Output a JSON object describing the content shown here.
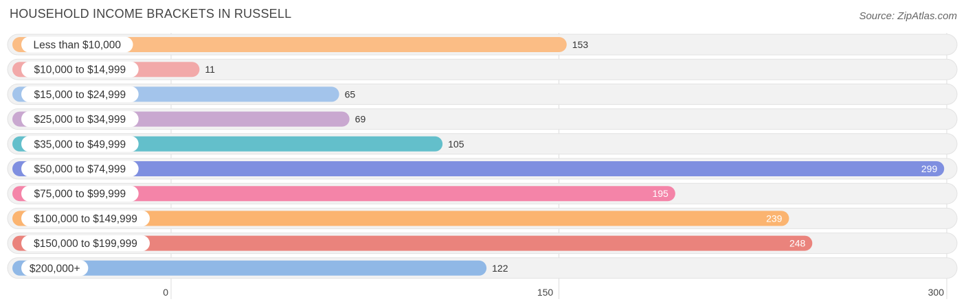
{
  "title": "HOUSEHOLD INCOME BRACKETS IN RUSSELL",
  "source": "Source: ZipAtlas.com",
  "chart_data": {
    "type": "bar",
    "orientation": "horizontal",
    "title": "HOUSEHOLD INCOME BRACKETS IN RUSSELL",
    "categories": [
      "Less than $10,000",
      "$10,000 to $14,999",
      "$15,000 to $24,999",
      "$25,000 to $34,999",
      "$35,000 to $49,999",
      "$50,000 to $74,999",
      "$75,000 to $99,999",
      "$100,000 to $149,999",
      "$150,000 to $199,999",
      "$200,000+"
    ],
    "values": [
      153,
      11,
      65,
      69,
      105,
      299,
      195,
      239,
      248,
      122
    ],
    "colors": [
      "#fbbd85",
      "#f2a9a9",
      "#a3c4eb",
      "#c9a8d0",
      "#63bfcb",
      "#7f8fe0",
      "#f484a8",
      "#fbb470",
      "#ea837c",
      "#90b8e6"
    ],
    "xlim": [
      0,
      300
    ],
    "xticks": [
      0,
      150,
      300
    ],
    "grid": true,
    "value_labels_inside": [
      false,
      false,
      false,
      false,
      false,
      true,
      true,
      true,
      true,
      false
    ]
  }
}
